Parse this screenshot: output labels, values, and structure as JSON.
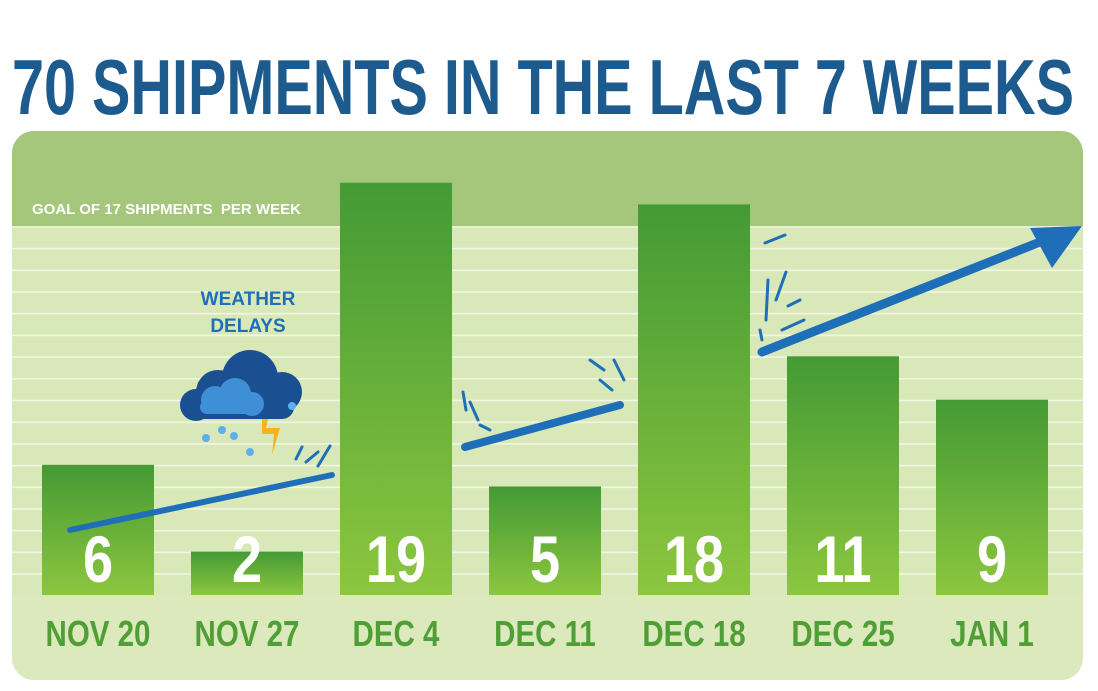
{
  "chart_data": {
    "type": "bar",
    "title": "70 SHIPMENTS IN THE LAST 7 WEEKS",
    "categories": [
      "NOV 20",
      "NOV 27",
      "DEC 4",
      "DEC 11",
      "DEC 18",
      "DEC 25",
      "JAN 1"
    ],
    "values": [
      6,
      2,
      19,
      5,
      18,
      11,
      9
    ],
    "goal": {
      "value": 17,
      "label": "GOAL OF 17 SHIPMENTS  PER WEEK"
    },
    "annotation": [
      "WEATHER",
      "DELAYS"
    ],
    "color": "#4f9e36"
  }
}
